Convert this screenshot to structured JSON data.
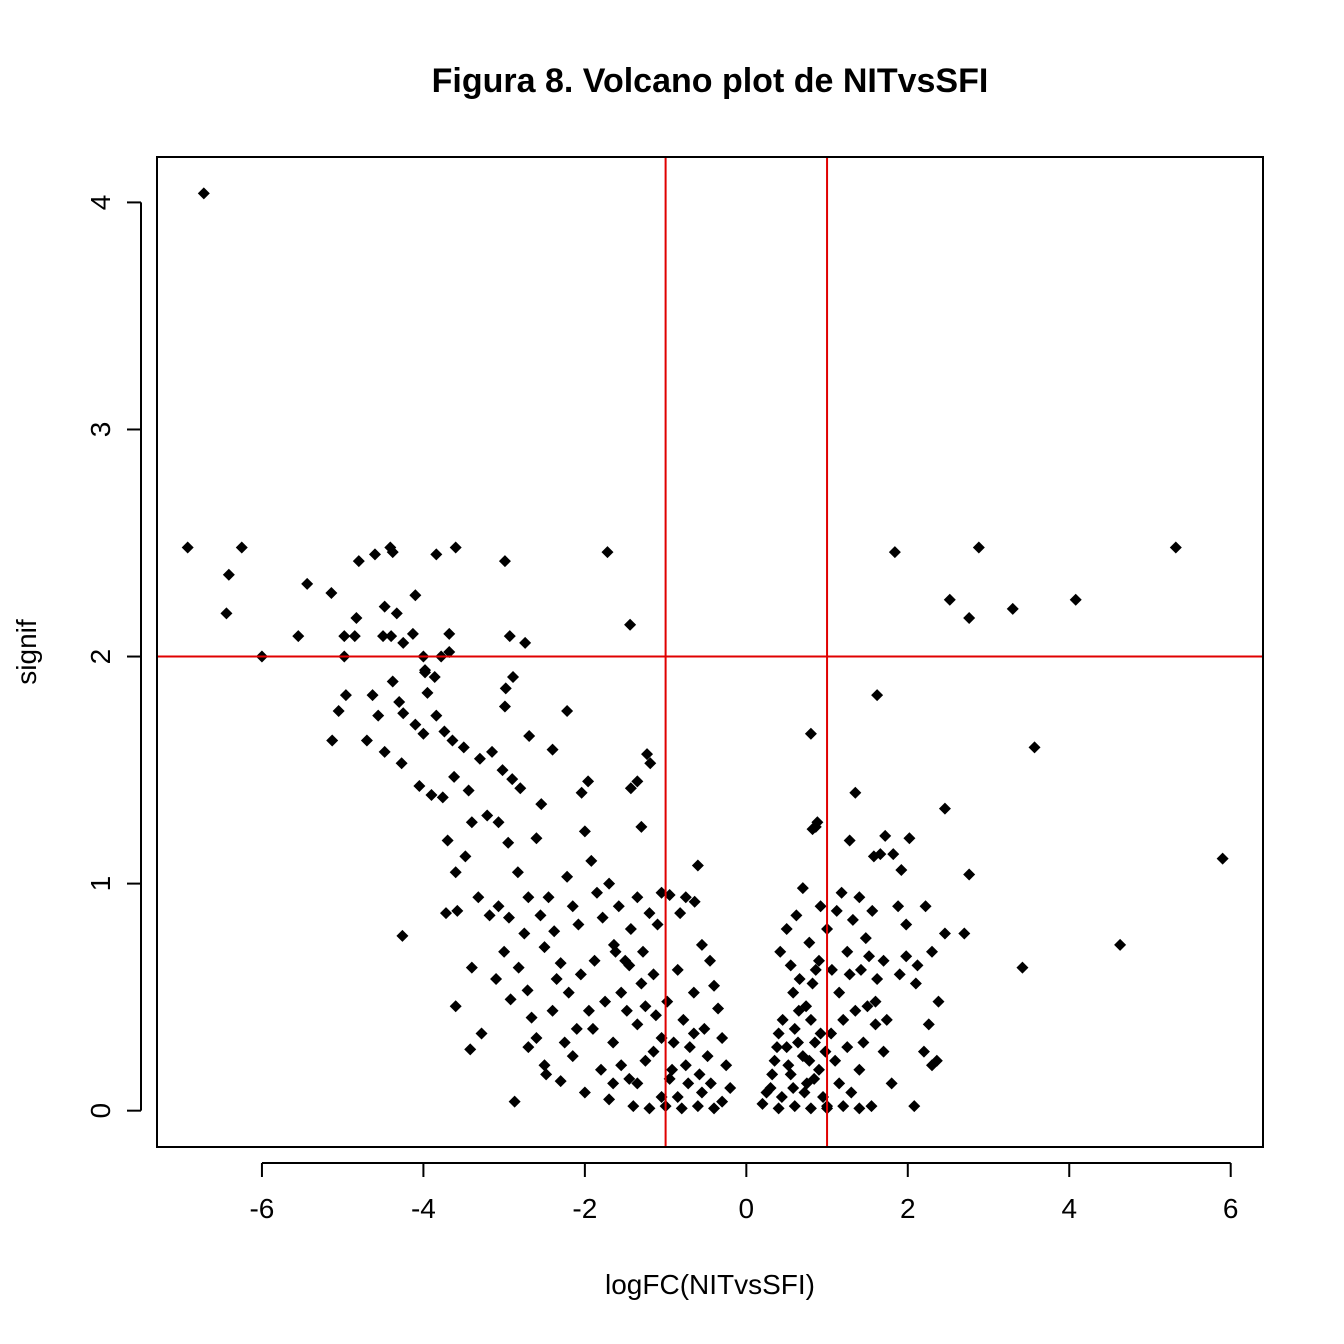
{
  "chart_data": {
    "type": "scatter",
    "title": "Figura 8. Volcano plot de NITvsSFI",
    "xlabel": "logFC(NITvsSFI)",
    "ylabel": "signif",
    "xlim": [
      -7.3,
      6.4
    ],
    "ylim": [
      -0.16,
      4.2
    ],
    "x_ticks": [
      -6,
      -4,
      -2,
      0,
      2,
      4,
      6
    ],
    "x_tick_labels": [
      "-6",
      "-4",
      "-2",
      "0",
      "2",
      "4",
      "6"
    ],
    "y_ticks": [
      0,
      1,
      2,
      3,
      4
    ],
    "y_tick_labels": [
      "0",
      "1",
      "2",
      "3",
      "4"
    ],
    "grid": false,
    "reference_lines": {
      "color": "#e00000",
      "vertical_x": [
        -1,
        1
      ],
      "horizontal_y": [
        2
      ]
    },
    "marker": {
      "shape": "diamond",
      "color": "#000000"
    },
    "points": [
      [
        -6.72,
        4.04
      ],
      [
        -6.92,
        2.48
      ],
      [
        -6.25,
        2.48
      ],
      [
        -6.41,
        2.36
      ],
      [
        -6.44,
        2.19
      ],
      [
        -6.0,
        2.0
      ],
      [
        -5.44,
        2.32
      ],
      [
        -5.55,
        2.09
      ],
      [
        -5.14,
        2.28
      ],
      [
        -4.98,
        2.09
      ],
      [
        -4.98,
        2.0
      ],
      [
        -4.8,
        2.42
      ],
      [
        -4.83,
        2.17
      ],
      [
        -4.6,
        2.45
      ],
      [
        -4.48,
        2.22
      ],
      [
        -4.41,
        2.48
      ],
      [
        -4.38,
        2.46
      ],
      [
        -4.33,
        2.19
      ],
      [
        -4.4,
        2.09
      ],
      [
        -4.1,
        2.27
      ],
      [
        -4.13,
        2.1
      ],
      [
        -3.98,
        1.93
      ],
      [
        -3.84,
        2.45
      ],
      [
        -3.6,
        2.48
      ],
      [
        -3.68,
        2.1
      ],
      [
        -3.68,
        2.02
      ],
      [
        -3.78,
        2.0
      ],
      [
        -4.85,
        2.09
      ],
      [
        -4.5,
        2.09
      ],
      [
        -4.25,
        2.06
      ],
      [
        -4.0,
        2.0
      ],
      [
        -3.98,
        1.94
      ],
      [
        -3.86,
        1.91
      ],
      [
        -5.05,
        1.76
      ],
      [
        -4.96,
        1.83
      ],
      [
        -5.13,
        1.63
      ],
      [
        -4.63,
        1.83
      ],
      [
        -4.56,
        1.74
      ],
      [
        -4.38,
        1.89
      ],
      [
        -4.3,
        1.8
      ],
      [
        -4.25,
        1.75
      ],
      [
        -4.1,
        1.7
      ],
      [
        -4.0,
        1.66
      ],
      [
        -3.95,
        1.84
      ],
      [
        -3.84,
        1.74
      ],
      [
        -3.74,
        1.67
      ],
      [
        -3.64,
        1.63
      ],
      [
        -3.5,
        1.6
      ],
      [
        -4.7,
        1.63
      ],
      [
        -4.48,
        1.58
      ],
      [
        -4.27,
        1.53
      ],
      [
        -4.05,
        1.43
      ],
      [
        -3.9,
        1.39
      ],
      [
        -3.76,
        1.38
      ],
      [
        -3.62,
        1.47
      ],
      [
        -3.44,
        1.41
      ],
      [
        -3.3,
        1.55
      ],
      [
        -3.15,
        1.58
      ],
      [
        -3.02,
        1.5
      ],
      [
        -2.9,
        1.46
      ],
      [
        -2.8,
        1.42
      ],
      [
        -2.69,
        1.65
      ],
      [
        -2.54,
        1.35
      ],
      [
        -2.4,
        1.59
      ],
      [
        -2.22,
        1.76
      ],
      [
        -2.04,
        1.4
      ],
      [
        -1.96,
        1.45
      ],
      [
        -1.72,
        2.46
      ],
      [
        -1.44,
        2.14
      ],
      [
        -1.43,
        1.42
      ],
      [
        -1.35,
        1.45
      ],
      [
        -1.23,
        1.57
      ],
      [
        -1.19,
        1.53
      ],
      [
        -1.3,
        1.25
      ],
      [
        -2.99,
        2.42
      ],
      [
        -2.93,
        2.09
      ],
      [
        -2.74,
        2.06
      ],
      [
        -2.98,
        1.86
      ],
      [
        -2.89,
        1.91
      ],
      [
        -2.99,
        1.78
      ],
      [
        -4.26,
        0.77
      ],
      [
        -2.87,
        0.04
      ],
      [
        -3.42,
        0.27
      ],
      [
        -3.28,
        0.34
      ],
      [
        -3.6,
        0.46
      ],
      [
        -3.4,
        0.63
      ],
      [
        -3.32,
        0.94
      ],
      [
        -3.18,
        0.86
      ],
      [
        -3.07,
        0.9
      ],
      [
        -2.94,
        0.85
      ],
      [
        -2.82,
        0.63
      ],
      [
        -2.71,
        0.53
      ],
      [
        -2.66,
        0.41
      ],
      [
        -3.58,
        0.88
      ],
      [
        -3.72,
        0.87
      ],
      [
        -3.7,
        1.19
      ],
      [
        -3.6,
        1.05
      ],
      [
        -3.48,
        1.12
      ],
      [
        -3.4,
        1.27
      ],
      [
        -3.21,
        1.3
      ],
      [
        -3.07,
        1.27
      ],
      [
        -2.95,
        1.18
      ],
      [
        -2.83,
        1.05
      ],
      [
        -2.7,
        0.94
      ],
      [
        -2.6,
        1.2
      ],
      [
        -2.5,
        0.72
      ],
      [
        -2.45,
        0.94
      ],
      [
        -2.38,
        0.79
      ],
      [
        -2.3,
        0.65
      ],
      [
        -2.22,
        1.03
      ],
      [
        -2.15,
        0.9
      ],
      [
        -2.08,
        0.82
      ],
      [
        -2.0,
        1.23
      ],
      [
        -1.92,
        1.1
      ],
      [
        -1.85,
        0.96
      ],
      [
        -1.78,
        0.85
      ],
      [
        -1.7,
        1.0
      ],
      [
        -1.64,
        0.73
      ],
      [
        -1.58,
        0.9
      ],
      [
        -1.5,
        0.66
      ],
      [
        -1.43,
        0.8
      ],
      [
        -1.35,
        0.94
      ],
      [
        -1.28,
        0.7
      ],
      [
        -1.2,
        0.87
      ],
      [
        -1.1,
        0.82
      ],
      [
        -1.05,
        0.96
      ],
      [
        -0.95,
        0.95
      ],
      [
        -0.82,
        0.87
      ],
      [
        -0.75,
        0.94
      ],
      [
        -0.6,
        1.08
      ],
      [
        -0.64,
        0.92
      ],
      [
        -0.55,
        0.73
      ],
      [
        -0.45,
        0.66
      ],
      [
        -0.4,
        0.55
      ],
      [
        -0.35,
        0.45
      ],
      [
        -0.3,
        0.32
      ],
      [
        -0.25,
        0.2
      ],
      [
        -0.2,
        0.1
      ],
      [
        -2.6,
        0.32
      ],
      [
        -2.5,
        0.2
      ],
      [
        -2.3,
        0.13
      ],
      [
        -2.15,
        0.24
      ],
      [
        -2.0,
        0.08
      ],
      [
        -1.9,
        0.36
      ],
      [
        -1.8,
        0.18
      ],
      [
        -1.7,
        0.05
      ],
      [
        -2.4,
        0.44
      ],
      [
        -2.2,
        0.52
      ],
      [
        -2.05,
        0.6
      ],
      [
        -1.95,
        0.44
      ],
      [
        -1.65,
        0.3
      ],
      [
        -1.55,
        0.52
      ],
      [
        -1.45,
        0.14
      ],
      [
        -1.35,
        0.38
      ],
      [
        -1.25,
        0.22
      ],
      [
        -1.15,
        0.6
      ],
      [
        -1.05,
        0.32
      ],
      [
        -0.98,
        0.48
      ],
      [
        -0.92,
        0.18
      ],
      [
        -0.85,
        0.62
      ],
      [
        -0.78,
        0.4
      ],
      [
        -0.7,
        0.28
      ],
      [
        -0.65,
        0.52
      ],
      [
        -0.58,
        0.16
      ],
      [
        -0.52,
        0.36
      ],
      [
        -0.48,
        0.24
      ],
      [
        -0.44,
        0.12
      ],
      [
        -1.4,
        0.02
      ],
      [
        -1.2,
        0.01
      ],
      [
        -1.0,
        0.02
      ],
      [
        -0.8,
        0.01
      ],
      [
        -0.6,
        0.02
      ],
      [
        -0.4,
        0.01
      ],
      [
        -0.3,
        0.04
      ],
      [
        -1.62,
        0.7
      ],
      [
        -1.48,
        0.44
      ],
      [
        -1.3,
        0.56
      ],
      [
        -1.12,
        0.42
      ],
      [
        -0.9,
        0.3
      ],
      [
        -0.72,
        0.12
      ],
      [
        -1.75,
        0.48
      ],
      [
        -1.88,
        0.66
      ],
      [
        -2.1,
        0.36
      ],
      [
        -2.35,
        0.58
      ],
      [
        -2.55,
        0.86
      ],
      [
        -2.75,
        0.78
      ],
      [
        -3.0,
        0.7
      ],
      [
        -3.1,
        0.58
      ],
      [
        -2.92,
        0.49
      ],
      [
        -2.7,
        0.28
      ],
      [
        -2.48,
        0.16
      ],
      [
        -2.25,
        0.3
      ],
      [
        0.2,
        0.03
      ],
      [
        0.3,
        0.1
      ],
      [
        0.35,
        0.22
      ],
      [
        0.4,
        0.34
      ],
      [
        0.45,
        0.4
      ],
      [
        0.5,
        0.28
      ],
      [
        0.55,
        0.16
      ],
      [
        0.6,
        0.36
      ],
      [
        0.65,
        0.44
      ],
      [
        0.7,
        0.24
      ],
      [
        0.75,
        0.12
      ],
      [
        0.8,
        0.4
      ],
      [
        0.85,
        0.3
      ],
      [
        0.9,
        0.18
      ],
      [
        0.95,
        0.06
      ],
      [
        1.0,
        0.02
      ],
      [
        1.05,
        0.34
      ],
      [
        1.1,
        0.22
      ],
      [
        1.15,
        0.12
      ],
      [
        1.2,
        0.4
      ],
      [
        1.25,
        0.28
      ],
      [
        1.3,
        0.08
      ],
      [
        1.35,
        0.44
      ],
      [
        1.4,
        0.18
      ],
      [
        1.45,
        0.3
      ],
      [
        1.5,
        0.46
      ],
      [
        1.55,
        0.02
      ],
      [
        1.6,
        0.38
      ],
      [
        1.7,
        0.26
      ],
      [
        1.8,
        0.12
      ],
      [
        0.4,
        0.01
      ],
      [
        0.6,
        0.02
      ],
      [
        0.8,
        0.01
      ],
      [
        1.0,
        0.01
      ],
      [
        1.2,
        0.02
      ],
      [
        1.4,
        0.01
      ],
      [
        0.42,
        0.7
      ],
      [
        0.55,
        0.64
      ],
      [
        0.62,
        0.86
      ],
      [
        0.7,
        0.98
      ],
      [
        0.78,
        0.74
      ],
      [
        0.86,
        0.62
      ],
      [
        0.92,
        0.9
      ],
      [
        1.0,
        0.8
      ],
      [
        1.06,
        0.62
      ],
      [
        1.12,
        0.88
      ],
      [
        1.18,
        0.96
      ],
      [
        1.25,
        0.7
      ],
      [
        1.32,
        0.84
      ],
      [
        1.4,
        0.94
      ],
      [
        1.48,
        0.76
      ],
      [
        1.56,
        0.88
      ],
      [
        1.62,
        0.58
      ],
      [
        1.7,
        0.66
      ],
      [
        0.5,
        0.8
      ],
      [
        0.58,
        0.52
      ],
      [
        0.66,
        0.58
      ],
      [
        0.74,
        0.46
      ],
      [
        0.82,
        0.56
      ],
      [
        0.9,
        0.66
      ],
      [
        1.15,
        0.52
      ],
      [
        1.28,
        0.6
      ],
      [
        1.42,
        0.62
      ],
      [
        1.52,
        0.68
      ],
      [
        1.6,
        0.48
      ],
      [
        1.74,
        0.4
      ],
      [
        0.8,
        1.66
      ],
      [
        0.86,
        1.25
      ],
      [
        0.88,
        1.27
      ],
      [
        0.82,
        1.24
      ],
      [
        1.62,
        1.83
      ],
      [
        1.35,
        1.4
      ],
      [
        1.28,
        1.19
      ],
      [
        1.58,
        1.12
      ],
      [
        1.66,
        1.13
      ],
      [
        1.72,
        1.21
      ],
      [
        1.82,
        1.13
      ],
      [
        1.92,
        1.06
      ],
      [
        2.02,
        1.2
      ],
      [
        1.88,
        0.9
      ],
      [
        1.98,
        0.82
      ],
      [
        2.1,
        0.56
      ],
      [
        2.2,
        0.26
      ],
      [
        2.3,
        0.2
      ],
      [
        2.38,
        0.48
      ],
      [
        2.46,
        0.78
      ],
      [
        2.3,
        0.7
      ],
      [
        2.22,
        0.9
      ],
      [
        2.08,
        0.02
      ],
      [
        1.98,
        0.68
      ],
      [
        2.12,
        0.64
      ],
      [
        2.26,
        0.38
      ],
      [
        2.36,
        0.22
      ],
      [
        1.9,
        0.6
      ],
      [
        2.7,
        0.78
      ],
      [
        2.76,
        1.04
      ],
      [
        2.46,
        1.33
      ],
      [
        1.84,
        2.46
      ],
      [
        2.52,
        2.25
      ],
      [
        2.76,
        2.17
      ],
      [
        2.88,
        2.48
      ],
      [
        3.3,
        2.21
      ],
      [
        4.08,
        2.25
      ],
      [
        5.32,
        2.48
      ],
      [
        3.57,
        1.6
      ],
      [
        5.9,
        1.11
      ],
      [
        4.63,
        0.73
      ],
      [
        3.42,
        0.63
      ],
      [
        -0.85,
        0.06
      ],
      [
        -0.75,
        0.2
      ],
      [
        -0.65,
        0.34
      ],
      [
        -0.55,
        0.08
      ],
      [
        -0.95,
        0.14
      ],
      [
        -1.05,
        0.06
      ],
      [
        -1.15,
        0.26
      ],
      [
        -1.25,
        0.46
      ],
      [
        -1.35,
        0.12
      ],
      [
        -1.45,
        0.64
      ],
      [
        -1.55,
        0.2
      ],
      [
        -1.65,
        0.12
      ],
      [
        0.25,
        0.08
      ],
      [
        0.32,
        0.16
      ],
      [
        0.38,
        0.28
      ],
      [
        0.44,
        0.06
      ],
      [
        0.52,
        0.2
      ],
      [
        0.58,
        0.1
      ],
      [
        0.64,
        0.3
      ],
      [
        0.72,
        0.08
      ],
      [
        0.78,
        0.22
      ],
      [
        0.84,
        0.14
      ],
      [
        0.92,
        0.34
      ],
      [
        0.98,
        0.26
      ]
    ]
  }
}
